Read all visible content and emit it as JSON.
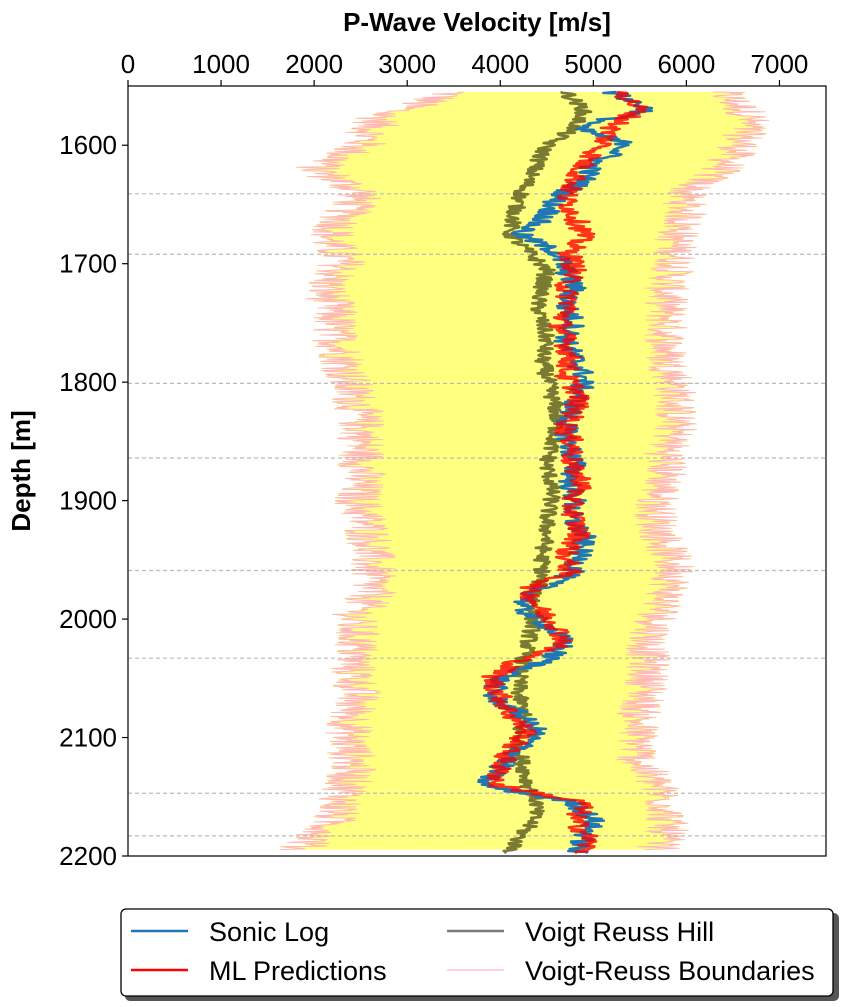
{
  "chart_data": {
    "type": "line",
    "xlabel": "P-Wave Velocity [m/s]",
    "ylabel": "Depth [m]",
    "xlim": [
      0,
      7500
    ],
    "ylim": [
      2200,
      1550
    ],
    "x_axis_position": "top",
    "y_axis_inverted": true,
    "xticks": [
      0,
      1000,
      2000,
      3000,
      4000,
      5000,
      6000,
      7000
    ],
    "xtick_labels": [
      "0",
      "1000",
      "2000",
      "3000",
      "4000",
      "5000",
      "6000",
      "7000"
    ],
    "yticks": [
      1600,
      1700,
      1800,
      1900,
      2000,
      2100,
      2200
    ],
    "ytick_labels": [
      "1600",
      "1700",
      "1800",
      "1900",
      "2000",
      "2100",
      "2200"
    ],
    "formation_tops": [
      1641,
      1692,
      1801,
      1864,
      1959,
      2033,
      2147,
      2183
    ],
    "grid": false,
    "legend": {
      "placement": "bottom-outside",
      "columns": 2,
      "entries": [
        "Sonic Log",
        "ML Predictions",
        "Voigt Reuss Hill",
        "Voigt-Reuss Boundaries"
      ]
    },
    "colors": {
      "sonic": "#1f77b4",
      "ml": "#ff0000",
      "vrh": "#4d4d4d",
      "boundaries": "#ffb6c1",
      "fill": "#ffff80",
      "formation_line": "#bbbbbb"
    },
    "series": [
      {
        "name": "Voigt-Reuss Boundaries",
        "kind": "band",
        "depth": [
          1555,
          1575,
          1600,
          1620,
          1640,
          1660,
          1680,
          1700,
          1720,
          1740,
          1760,
          1780,
          1800,
          1820,
          1840,
          1860,
          1880,
          1900,
          1920,
          1940,
          1960,
          1980,
          2000,
          2020,
          2040,
          2060,
          2080,
          2100,
          2120,
          2140,
          2160,
          2180,
          2195
        ],
        "lower": [
          3500,
          2700,
          2500,
          2000,
          2500,
          2300,
          2150,
          2300,
          2100,
          2200,
          2200,
          2300,
          2350,
          2450,
          2500,
          2500,
          2500,
          2450,
          2550,
          2600,
          2600,
          2600,
          2400,
          2450,
          2400,
          2450,
          2400,
          2350,
          2400,
          2350,
          2250,
          2100,
          1800
        ],
        "upper": [
          6400,
          6700,
          6600,
          6400,
          6000,
          6000,
          5900,
          5900,
          5800,
          5800,
          5800,
          5800,
          5900,
          5900,
          5900,
          5800,
          5800,
          5700,
          5700,
          5800,
          5900,
          5800,
          5700,
          5600,
          5600,
          5600,
          5500,
          5500,
          5500,
          5700,
          5800,
          5800,
          5700
        ]
      },
      {
        "name": "Voigt Reuss Hill",
        "kind": "line",
        "depth": [
          1555,
          1570,
          1585,
          1600,
          1615,
          1630,
          1645,
          1660,
          1675,
          1690,
          1705,
          1720,
          1735,
          1750,
          1765,
          1780,
          1795,
          1810,
          1825,
          1840,
          1855,
          1870,
          1885,
          1900,
          1915,
          1930,
          1945,
          1960,
          1975,
          1990,
          2005,
          2020,
          2035,
          2050,
          2065,
          2080,
          2095,
          2110,
          2125,
          2140,
          2155,
          2170,
          2185,
          2198
        ],
        "values": [
          4700,
          4900,
          4800,
          4500,
          4400,
          4300,
          4200,
          4150,
          4100,
          4300,
          4500,
          4450,
          4400,
          4450,
          4500,
          4450,
          4500,
          4550,
          4600,
          4600,
          4550,
          4500,
          4550,
          4550,
          4500,
          4500,
          4450,
          4450,
          4400,
          4350,
          4350,
          4300,
          4250,
          4200,
          4200,
          4250,
          4200,
          4200,
          4250,
          4300,
          4400,
          4350,
          4200,
          4100
        ]
      },
      {
        "name": "Sonic Log",
        "kind": "line",
        "depth": [
          1555,
          1570,
          1585,
          1600,
          1615,
          1630,
          1645,
          1660,
          1675,
          1690,
          1705,
          1720,
          1735,
          1750,
          1765,
          1780,
          1795,
          1810,
          1825,
          1840,
          1855,
          1870,
          1885,
          1900,
          1915,
          1930,
          1945,
          1960,
          1975,
          1990,
          2005,
          2020,
          2035,
          2050,
          2065,
          2080,
          2095,
          2110,
          2125,
          2140,
          2155,
          2170,
          2185,
          2198
        ],
        "values": [
          5200,
          5600,
          4800,
          5400,
          5000,
          4900,
          4600,
          4500,
          4200,
          4600,
          4700,
          4800,
          4700,
          4800,
          4700,
          4800,
          4900,
          4850,
          4750,
          4700,
          4750,
          4800,
          4750,
          4800,
          4750,
          4900,
          4850,
          4800,
          4400,
          4200,
          4500,
          4700,
          4500,
          4000,
          3900,
          4200,
          4400,
          4200,
          4000,
          3800,
          4800,
          5000,
          4900,
          4800
        ]
      },
      {
        "name": "ML Predictions",
        "kind": "line",
        "depth": [
          1555,
          1570,
          1585,
          1600,
          1615,
          1630,
          1645,
          1660,
          1675,
          1690,
          1705,
          1720,
          1735,
          1750,
          1765,
          1780,
          1795,
          1810,
          1825,
          1840,
          1855,
          1870,
          1885,
          1900,
          1915,
          1930,
          1945,
          1960,
          1975,
          1990,
          2005,
          2020,
          2035,
          2050,
          2065,
          2080,
          2095,
          2110,
          2125,
          2140,
          2155,
          2170,
          2185,
          2198
        ],
        "values": [
          5300,
          5500,
          5200,
          5100,
          4900,
          4800,
          4700,
          4800,
          4900,
          4750,
          4800,
          4700,
          4750,
          4650,
          4700,
          4750,
          4700,
          4850,
          4800,
          4700,
          4800,
          4750,
          4900,
          4750,
          4800,
          4850,
          4700,
          4750,
          4300,
          4400,
          4600,
          4700,
          4200,
          3900,
          4000,
          4100,
          4300,
          4100,
          4000,
          3950,
          4900,
          4800,
          4950,
          4900
        ]
      }
    ]
  }
}
